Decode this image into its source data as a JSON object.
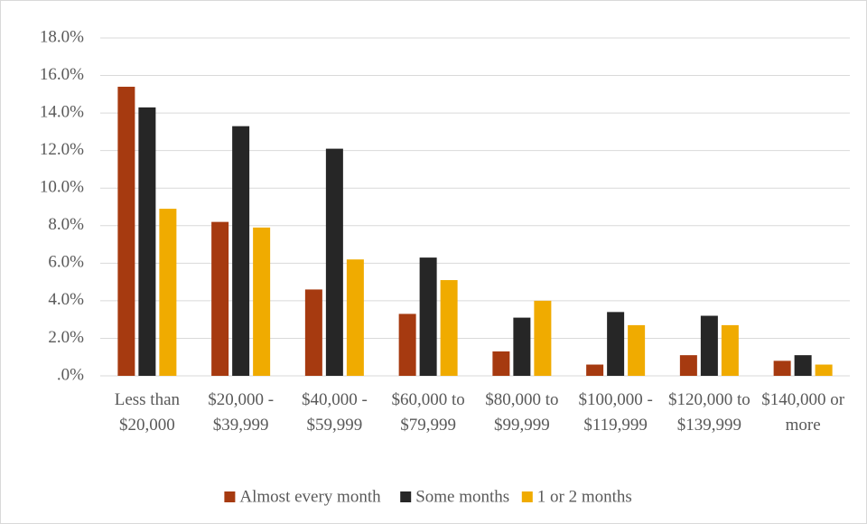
{
  "chart_data": {
    "type": "bar",
    "categories": [
      "Less than $20,000",
      "$20,000 - $39,999",
      "$40,000 - $59,999",
      "$60,000 to $79,999",
      "$80,000 to $99,999",
      "$100,000 - $119,999",
      "$120,000 to $139,999",
      "$140,000 or more"
    ],
    "series": [
      {
        "name": "Almost every month",
        "color": "#a63a10",
        "values": [
          15.4,
          8.2,
          4.6,
          3.3,
          1.3,
          0.6,
          1.1,
          0.8
        ]
      },
      {
        "name": "Some months",
        "color": "#262626",
        "values": [
          14.3,
          13.3,
          12.1,
          6.3,
          3.1,
          3.4,
          3.2,
          1.1
        ]
      },
      {
        "name": "1 or 2 months",
        "color": "#f0ab00",
        "values": [
          8.9,
          7.9,
          6.2,
          5.1,
          4.0,
          2.7,
          2.7,
          0.6
        ]
      }
    ],
    "ylim": [
      0,
      18
    ],
    "yticks": [
      {
        "value": 0,
        "label": ".0%"
      },
      {
        "value": 2,
        "label": "2.0%"
      },
      {
        "value": 4,
        "label": "4.0%"
      },
      {
        "value": 6,
        "label": "6.0%"
      },
      {
        "value": 8,
        "label": "8.0%"
      },
      {
        "value": 10,
        "label": "10.0%"
      },
      {
        "value": 12,
        "label": "12.0%"
      },
      {
        "value": 14,
        "label": "14.0%"
      },
      {
        "value": 16,
        "label": "16.0%"
      },
      {
        "value": 18,
        "label": "18.0%"
      }
    ],
    "grid": true,
    "legend": "bottom"
  }
}
